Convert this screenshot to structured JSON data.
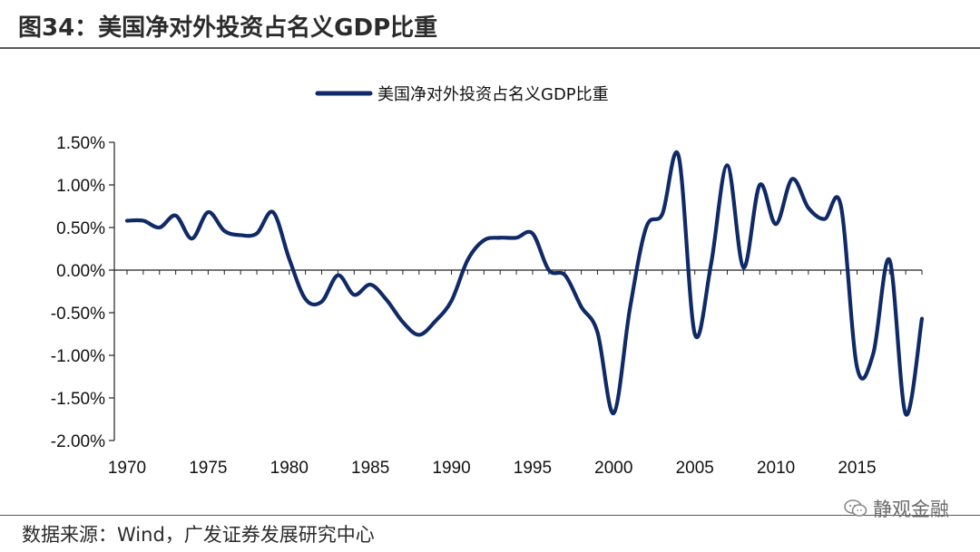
{
  "header": {
    "figure_title": "图34：美国净对外投资占名义GDP比重"
  },
  "footer": {
    "source": "数据来源：Wind，广发证券发展研究中心",
    "watermark": "静观金融",
    "watermark_icon": "wechat-icon"
  },
  "chart_data": {
    "type": "line",
    "title": "",
    "xlabel": "",
    "ylabel": "",
    "legend_position": "top-center",
    "grid": false,
    "line_color": "#0f2a66",
    "xlim": [
      1970,
      2019
    ],
    "ylim": [
      -2.0,
      1.5
    ],
    "x_ticks": [
      1970,
      1975,
      1980,
      1985,
      1990,
      1995,
      2000,
      2005,
      2010,
      2015
    ],
    "x_tick_labels": [
      "1970",
      "1975",
      "1980",
      "1985",
      "1990",
      "1995",
      "2000",
      "2005",
      "2010",
      "2015"
    ],
    "y_ticks": [
      1.5,
      1.0,
      0.5,
      0.0,
      -0.5,
      -1.0,
      -1.5,
      -2.0
    ],
    "y_tick_labels": [
      "1.50%",
      "1.00%",
      "0.50%",
      "0.00%",
      "-0.50%",
      "-1.00%",
      "-1.50%",
      "-2.00%"
    ],
    "series": [
      {
        "name": "美国净对外投资占名义GDP比重",
        "x": [
          1970,
          1971,
          1972,
          1973,
          1974,
          1975,
          1976,
          1977,
          1978,
          1979,
          1980,
          1981,
          1982,
          1983,
          1984,
          1985,
          1986,
          1987,
          1988,
          1989,
          1990,
          1991,
          1992,
          1993,
          1994,
          1995,
          1996,
          1997,
          1998,
          1999,
          2000,
          2001,
          2002,
          2003,
          2004,
          2005,
          2006,
          2007,
          2008,
          2009,
          2010,
          2011,
          2012,
          2013,
          2014,
          2015,
          2016,
          2017,
          2018,
          2019
        ],
        "values": [
          0.58,
          0.58,
          0.5,
          0.64,
          0.37,
          0.68,
          0.46,
          0.41,
          0.43,
          0.68,
          0.13,
          -0.34,
          -0.37,
          -0.06,
          -0.29,
          -0.17,
          -0.35,
          -0.61,
          -0.76,
          -0.6,
          -0.36,
          0.12,
          0.35,
          0.38,
          0.38,
          0.43,
          0.0,
          -0.06,
          -0.43,
          -0.73,
          -1.68,
          -0.45,
          0.5,
          0.66,
          1.34,
          -0.75,
          0.07,
          1.23,
          0.03,
          1.0,
          0.54,
          1.07,
          0.73,
          0.6,
          0.76,
          -1.14,
          -0.98,
          0.12,
          -1.69,
          -0.57
        ]
      }
    ]
  }
}
